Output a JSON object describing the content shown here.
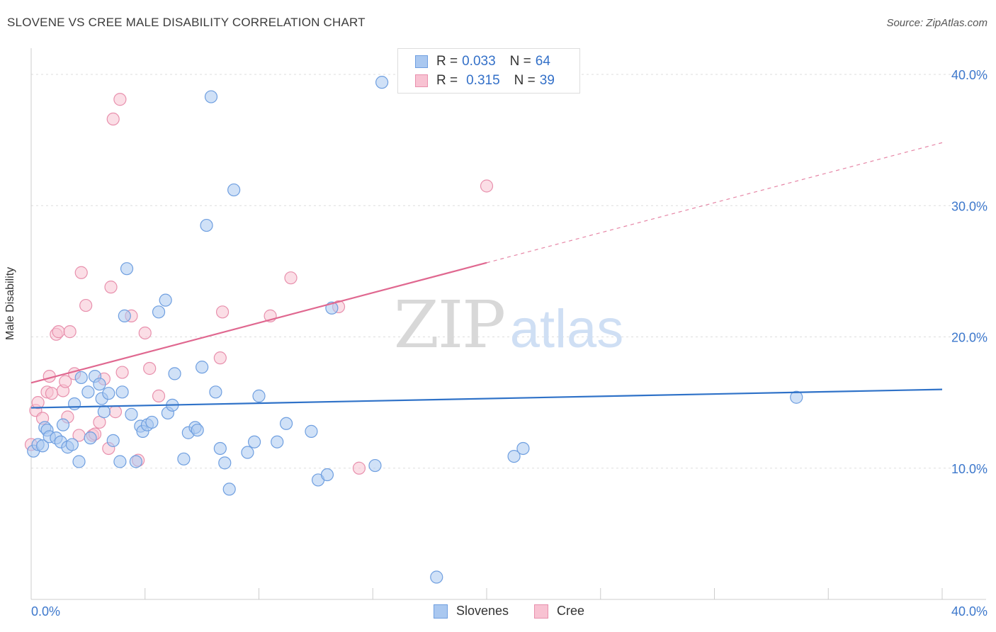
{
  "header": {
    "title": "SLOVENE VS CREE MALE DISABILITY CORRELATION CHART",
    "source": "Source: ZipAtlas.com"
  },
  "watermark": {
    "zip": "ZIP",
    "atlas": "atlas"
  },
  "legend": {
    "rows": [
      {
        "r_label": "R =",
        "r_value": "0.033",
        "n_label": "N =",
        "n_value": "64",
        "color": "#aac8f0",
        "border": "#6f9fe0"
      },
      {
        "r_label": "R =",
        "r_value": "0.315",
        "n_label": "N =",
        "n_value": "39",
        "color": "#f8c2d2",
        "border": "#e890ad"
      }
    ]
  },
  "colors": {
    "slovenes_fill": "#aac8f0",
    "slovenes_stroke": "#6f9fe0",
    "slovenes_line": "#2f72c8",
    "cree_fill": "#f8c2d2",
    "cree_stroke": "#e890ad",
    "cree_line": "#e06890",
    "tick_label": "#3d78cc",
    "grid": "#dddddd"
  },
  "chart_data": {
    "type": "scatter",
    "title": "SLOVENE VS CREE MALE DISABILITY CORRELATION CHART",
    "xlabel": "",
    "ylabel": "Male Disability",
    "xlim": [
      0,
      40
    ],
    "ylim": [
      0,
      42
    ],
    "x_tick_labels": [
      "0.0%",
      "40.0%"
    ],
    "y_ticks": [
      10,
      20,
      30,
      40
    ],
    "y_tick_labels": [
      "10.0%",
      "20.0%",
      "30.0%",
      "40.0%"
    ],
    "grid": true,
    "legend_position": "bottom",
    "series": [
      {
        "name": "Slovenes",
        "r": 0.033,
        "n": 64,
        "trend": {
          "x": [
            0,
            40
          ],
          "y": [
            14.6,
            16.0
          ],
          "dashed_from": null
        },
        "points": [
          [
            0.1,
            11.3
          ],
          [
            0.3,
            11.8
          ],
          [
            0.5,
            11.7
          ],
          [
            0.6,
            13.1
          ],
          [
            0.7,
            12.9
          ],
          [
            0.8,
            12.4
          ],
          [
            1.1,
            12.3
          ],
          [
            1.3,
            12.0
          ],
          [
            1.4,
            13.3
          ],
          [
            1.6,
            11.6
          ],
          [
            1.8,
            11.8
          ],
          [
            1.9,
            14.9
          ],
          [
            2.1,
            10.5
          ],
          [
            2.2,
            16.9
          ],
          [
            2.5,
            15.8
          ],
          [
            2.6,
            12.3
          ],
          [
            2.8,
            17.0
          ],
          [
            3.0,
            16.4
          ],
          [
            3.1,
            15.3
          ],
          [
            3.2,
            14.3
          ],
          [
            3.4,
            15.7
          ],
          [
            3.6,
            12.1
          ],
          [
            3.9,
            10.5
          ],
          [
            4.0,
            15.8
          ],
          [
            4.1,
            21.6
          ],
          [
            4.2,
            25.2
          ],
          [
            4.4,
            14.1
          ],
          [
            4.6,
            10.5
          ],
          [
            4.8,
            13.2
          ],
          [
            4.9,
            12.8
          ],
          [
            5.1,
            13.3
          ],
          [
            5.3,
            13.5
          ],
          [
            5.6,
            21.9
          ],
          [
            5.9,
            22.8
          ],
          [
            6.0,
            14.2
          ],
          [
            6.2,
            14.8
          ],
          [
            6.3,
            17.2
          ],
          [
            6.7,
            10.7
          ],
          [
            6.9,
            12.7
          ],
          [
            7.2,
            13.1
          ],
          [
            7.3,
            12.9
          ],
          [
            7.5,
            17.7
          ],
          [
            7.7,
            28.5
          ],
          [
            7.9,
            38.3
          ],
          [
            8.1,
            15.8
          ],
          [
            8.3,
            11.5
          ],
          [
            8.5,
            10.4
          ],
          [
            8.7,
            8.4
          ],
          [
            8.9,
            31.2
          ],
          [
            9.5,
            11.2
          ],
          [
            9.8,
            12.0
          ],
          [
            10.0,
            15.5
          ],
          [
            10.8,
            12.0
          ],
          [
            11.2,
            13.4
          ],
          [
            12.3,
            12.8
          ],
          [
            12.6,
            9.1
          ],
          [
            13.0,
            9.5
          ],
          [
            13.2,
            22.2
          ],
          [
            15.1,
            10.2
          ],
          [
            15.4,
            39.4
          ],
          [
            17.8,
            1.7
          ],
          [
            21.2,
            10.9
          ],
          [
            21.6,
            11.5
          ],
          [
            33.6,
            15.4
          ]
        ]
      },
      {
        "name": "Cree",
        "r": 0.315,
        "n": 39,
        "trend": {
          "x": [
            0,
            40
          ],
          "y": [
            16.5,
            34.8
          ],
          "dashed_from": 20
        },
        "points": [
          [
            0.0,
            11.8
          ],
          [
            0.2,
            14.4
          ],
          [
            0.3,
            15.0
          ],
          [
            0.5,
            13.8
          ],
          [
            0.7,
            15.8
          ],
          [
            0.8,
            17.0
          ],
          [
            0.9,
            15.7
          ],
          [
            1.1,
            20.2
          ],
          [
            1.2,
            20.4
          ],
          [
            1.4,
            15.9
          ],
          [
            1.5,
            16.6
          ],
          [
            1.6,
            13.9
          ],
          [
            1.7,
            20.4
          ],
          [
            1.9,
            17.2
          ],
          [
            2.1,
            12.5
          ],
          [
            2.2,
            24.9
          ],
          [
            2.4,
            22.4
          ],
          [
            2.7,
            12.5
          ],
          [
            2.8,
            12.6
          ],
          [
            3.0,
            13.5
          ],
          [
            3.2,
            16.8
          ],
          [
            3.4,
            11.5
          ],
          [
            3.5,
            23.8
          ],
          [
            3.6,
            36.6
          ],
          [
            3.7,
            14.3
          ],
          [
            3.9,
            38.1
          ],
          [
            4.0,
            17.3
          ],
          [
            4.4,
            21.6
          ],
          [
            4.7,
            10.6
          ],
          [
            5.0,
            20.3
          ],
          [
            5.2,
            17.6
          ],
          [
            5.6,
            15.5
          ],
          [
            8.3,
            18.4
          ],
          [
            8.4,
            21.9
          ],
          [
            10.5,
            21.6
          ],
          [
            11.4,
            24.5
          ],
          [
            13.5,
            22.3
          ],
          [
            14.4,
            10.0
          ],
          [
            20.0,
            31.5
          ]
        ]
      }
    ]
  },
  "bottom_legend": {
    "items": [
      {
        "label": "Slovenes"
      },
      {
        "label": "Cree"
      }
    ]
  }
}
